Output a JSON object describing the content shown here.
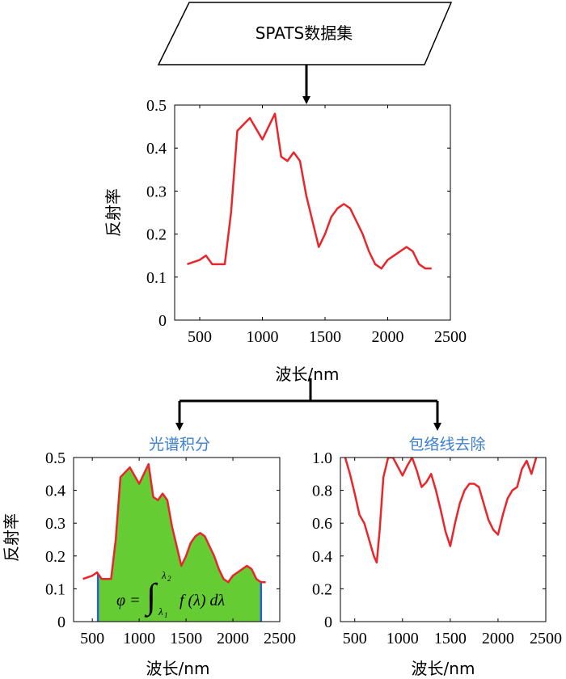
{
  "flow": {
    "dataset_label": "SPATS数据集",
    "integral_title": "光谱积分",
    "continuum_title": "包络线去除"
  },
  "formula": {
    "lhs": "φ =",
    "integrand": "f (λ) dλ",
    "upper": "λ",
    "upper_sub": "2",
    "lower": "λ",
    "lower_sub": "1"
  },
  "colors": {
    "curve": "#e8262b",
    "fill": "#66cc33",
    "bounds": "#2a5fd6",
    "title": "#3d7fd0"
  },
  "chart_data": [
    {
      "id": "reflectance",
      "type": "line",
      "xlabel": "波长/nm",
      "ylabel": "反射率",
      "xlim": [
        300,
        2500
      ],
      "ylim": [
        0,
        0.5
      ],
      "xticks": [
        500,
        1000,
        1500,
        2000,
        2500
      ],
      "yticks": [
        0,
        0.1,
        0.2,
        0.3,
        0.4,
        0.5
      ],
      "xticklabels": [
        "500",
        "1000",
        "1500",
        "2000",
        "2500"
      ],
      "yticklabels": [
        "0",
        "0.1",
        "0.2",
        "0.3",
        "0.4",
        "0.5"
      ],
      "x": [
        400,
        500,
        550,
        600,
        700,
        750,
        800,
        900,
        1000,
        1050,
        1100,
        1150,
        1200,
        1250,
        1300,
        1350,
        1400,
        1450,
        1500,
        1550,
        1600,
        1650,
        1700,
        1750,
        1800,
        1850,
        1900,
        1950,
        2000,
        2050,
        2100,
        2150,
        2200,
        2250,
        2300,
        2350
      ],
      "y": [
        0.13,
        0.14,
        0.15,
        0.13,
        0.13,
        0.25,
        0.44,
        0.47,
        0.42,
        0.45,
        0.48,
        0.38,
        0.37,
        0.39,
        0.37,
        0.29,
        0.23,
        0.17,
        0.2,
        0.24,
        0.26,
        0.27,
        0.26,
        0.23,
        0.2,
        0.16,
        0.13,
        0.12,
        0.14,
        0.15,
        0.16,
        0.17,
        0.16,
        0.13,
        0.12,
        0.12
      ]
    },
    {
      "id": "spectral-integral",
      "type": "area",
      "title": "光谱积分",
      "xlabel": "波长/nm",
      "ylabel": "反射率",
      "xlim": [
        300,
        2500
      ],
      "ylim": [
        0,
        0.5
      ],
      "xticks": [
        500,
        1000,
        1500,
        2000,
        2500
      ],
      "yticks": [
        0,
        0.1,
        0.2,
        0.3,
        0.4,
        0.5
      ],
      "xticklabels": [
        "500",
        "1000",
        "1500",
        "2000",
        "2500"
      ],
      "yticklabels": [
        "0",
        "0.1",
        "0.2",
        "0.3",
        "0.4",
        "0.5"
      ],
      "integration_bounds": [
        560,
        2300
      ],
      "x": [
        400,
        500,
        550,
        600,
        700,
        750,
        800,
        900,
        1000,
        1050,
        1100,
        1150,
        1200,
        1250,
        1300,
        1350,
        1400,
        1450,
        1500,
        1550,
        1600,
        1650,
        1700,
        1750,
        1800,
        1850,
        1900,
        1950,
        2000,
        2050,
        2100,
        2150,
        2200,
        2250,
        2300,
        2350
      ],
      "y": [
        0.13,
        0.14,
        0.15,
        0.13,
        0.13,
        0.25,
        0.44,
        0.47,
        0.42,
        0.45,
        0.48,
        0.38,
        0.37,
        0.39,
        0.37,
        0.29,
        0.23,
        0.17,
        0.2,
        0.24,
        0.26,
        0.27,
        0.26,
        0.23,
        0.2,
        0.16,
        0.13,
        0.12,
        0.14,
        0.15,
        0.16,
        0.17,
        0.16,
        0.13,
        0.12,
        0.12
      ]
    },
    {
      "id": "continuum-removed",
      "type": "line",
      "title": "包络线去除",
      "xlabel": "波长/nm",
      "xlim": [
        350,
        2500
      ],
      "ylim": [
        0,
        1.0
      ],
      "xticks": [
        500,
        1000,
        1500,
        2000,
        2500
      ],
      "yticks": [
        0,
        0.2,
        0.4,
        0.6,
        0.8,
        1.0
      ],
      "xticklabels": [
        "500",
        "1000",
        "1500",
        "2000",
        "2500"
      ],
      "yticklabels": [
        "0",
        "0.2",
        "0.4",
        "0.6",
        "0.8",
        "1.0"
      ],
      "x": [
        400,
        450,
        500,
        550,
        600,
        650,
        700,
        730,
        760,
        800,
        850,
        900,
        1000,
        1050,
        1100,
        1150,
        1200,
        1250,
        1300,
        1350,
        1400,
        1450,
        1500,
        1550,
        1600,
        1650,
        1700,
        1750,
        1800,
        1850,
        1900,
        1950,
        2000,
        2050,
        2100,
        2150,
        2200,
        2250,
        2300,
        2350,
        2400
      ],
      "y": [
        1.0,
        0.9,
        0.78,
        0.65,
        0.6,
        0.5,
        0.4,
        0.36,
        0.55,
        0.88,
        1.0,
        1.0,
        0.89,
        0.95,
        1.0,
        0.92,
        0.82,
        0.85,
        0.9,
        0.8,
        0.68,
        0.55,
        0.46,
        0.6,
        0.72,
        0.8,
        0.84,
        0.84,
        0.82,
        0.72,
        0.62,
        0.56,
        0.53,
        0.65,
        0.75,
        0.8,
        0.82,
        0.93,
        0.98,
        0.9,
        1.0
      ]
    }
  ]
}
